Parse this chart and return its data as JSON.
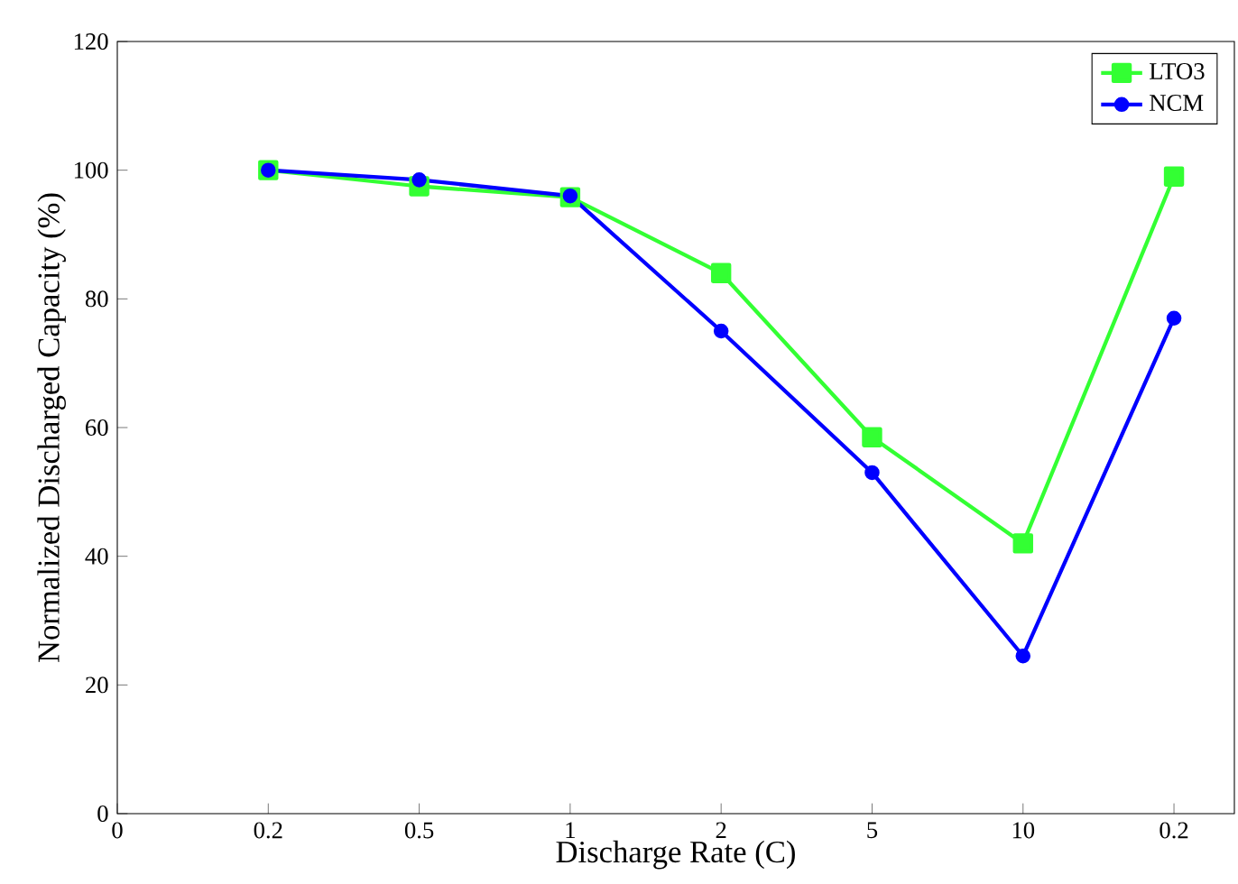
{
  "chart_data": {
    "type": "line",
    "xlabel": "Discharge Rate (C)",
    "ylabel": "Normalized Discharged Capacity (%)",
    "categories": [
      "0",
      "0.2",
      "0.5",
      "1",
      "2",
      "5",
      "10",
      "0.2"
    ],
    "series": [
      {
        "name": "LTO3",
        "color": "#33ff33",
        "marker": "square",
        "values": [
          null,
          100,
          97.5,
          95.8,
          84,
          58.5,
          42,
          99
        ]
      },
      {
        "name": "NCM",
        "color": "#0000ff",
        "marker": "circle",
        "values": [
          null,
          100,
          98.5,
          96,
          75,
          53,
          24.5,
          77
        ]
      }
    ],
    "ylim": [
      0,
      120
    ],
    "yticks": [
      0,
      20,
      40,
      60,
      80,
      100,
      120
    ],
    "legend": "top right",
    "grid": false,
    "line_style": "solid"
  }
}
